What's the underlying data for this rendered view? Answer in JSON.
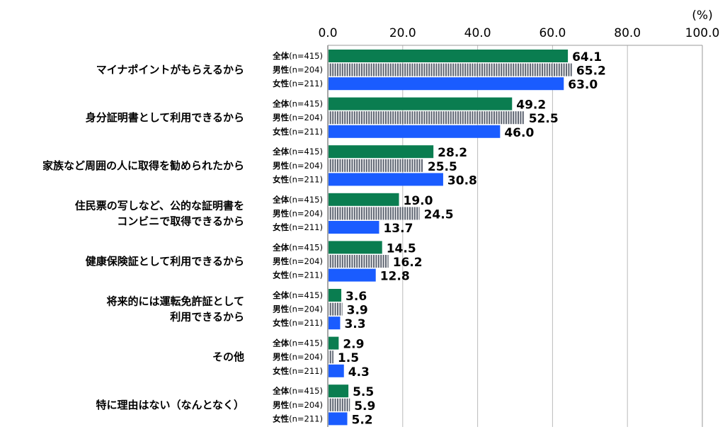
{
  "chart_data": {
    "type": "bar",
    "orientation": "horizontal",
    "unit_label": "(%)",
    "xlim": [
      0,
      100
    ],
    "xticks": [
      "0.0",
      "20.0",
      "40.0",
      "60.0",
      "80.0",
      "100.0"
    ],
    "grid": true,
    "categories": [
      [
        "マイナポイントがもらえるから"
      ],
      [
        "身分証明書として利用できるから"
      ],
      [
        "家族など周囲の人に取得を勧められたから"
      ],
      [
        "住民票の写しなど、公的な証明書を",
        "コンビニで取得できるから"
      ],
      [
        "健康保険証として利用できるから"
      ],
      [
        "将来的には運転免許証として",
        "利用できるから"
      ],
      [
        "その他"
      ],
      [
        "特に理由はない（なんとなく）"
      ]
    ],
    "series": [
      {
        "name": "全体",
        "n": "(n=415)",
        "color": "#0a7d50",
        "pattern": "solid",
        "values": [
          64.1,
          49.2,
          28.2,
          19.0,
          14.5,
          3.6,
          2.9,
          5.5
        ]
      },
      {
        "name": "男性",
        "n": "(n=204)",
        "color": "#5c6370",
        "pattern": "vertical-stripes",
        "values": [
          65.2,
          52.5,
          25.5,
          24.5,
          16.2,
          3.9,
          1.5,
          5.9
        ]
      },
      {
        "name": "女性",
        "n": "(n=211)",
        "color": "#1a5cff",
        "pattern": "solid",
        "values": [
          63.0,
          46.0,
          30.8,
          13.7,
          12.8,
          3.3,
          4.3,
          5.2
        ]
      }
    ]
  }
}
